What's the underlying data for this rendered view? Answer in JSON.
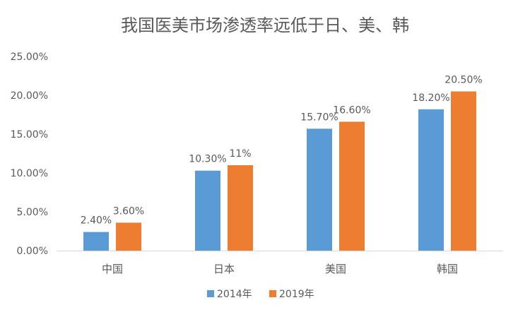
{
  "chart_data": {
    "type": "bar",
    "title": "我国医美市场渗透率远低于日、美、韩",
    "categories": [
      "中国",
      "日本",
      "美国",
      "韩国"
    ],
    "series": [
      {
        "name": "2014年",
        "color": "#5B9BD5",
        "values": [
          2.4,
          10.3,
          15.7,
          18.2
        ],
        "labels": [
          "2.40%",
          "10.30%",
          "15.70%",
          "18.20%"
        ]
      },
      {
        "name": "2019年",
        "color": "#ED7D31",
        "values": [
          3.6,
          11,
          16.6,
          20.5
        ],
        "labels": [
          "3.60%",
          "11%",
          "16.60%",
          "20.50%"
        ]
      }
    ],
    "ylim": [
      0,
      25
    ],
    "yticks": [
      "0.00%",
      "5.00%",
      "10.00%",
      "15.00%",
      "20.00%",
      "25.00%"
    ],
    "ytick_values": [
      0,
      5,
      10,
      15,
      20,
      25
    ],
    "grid": false,
    "legend_position": "bottom"
  }
}
